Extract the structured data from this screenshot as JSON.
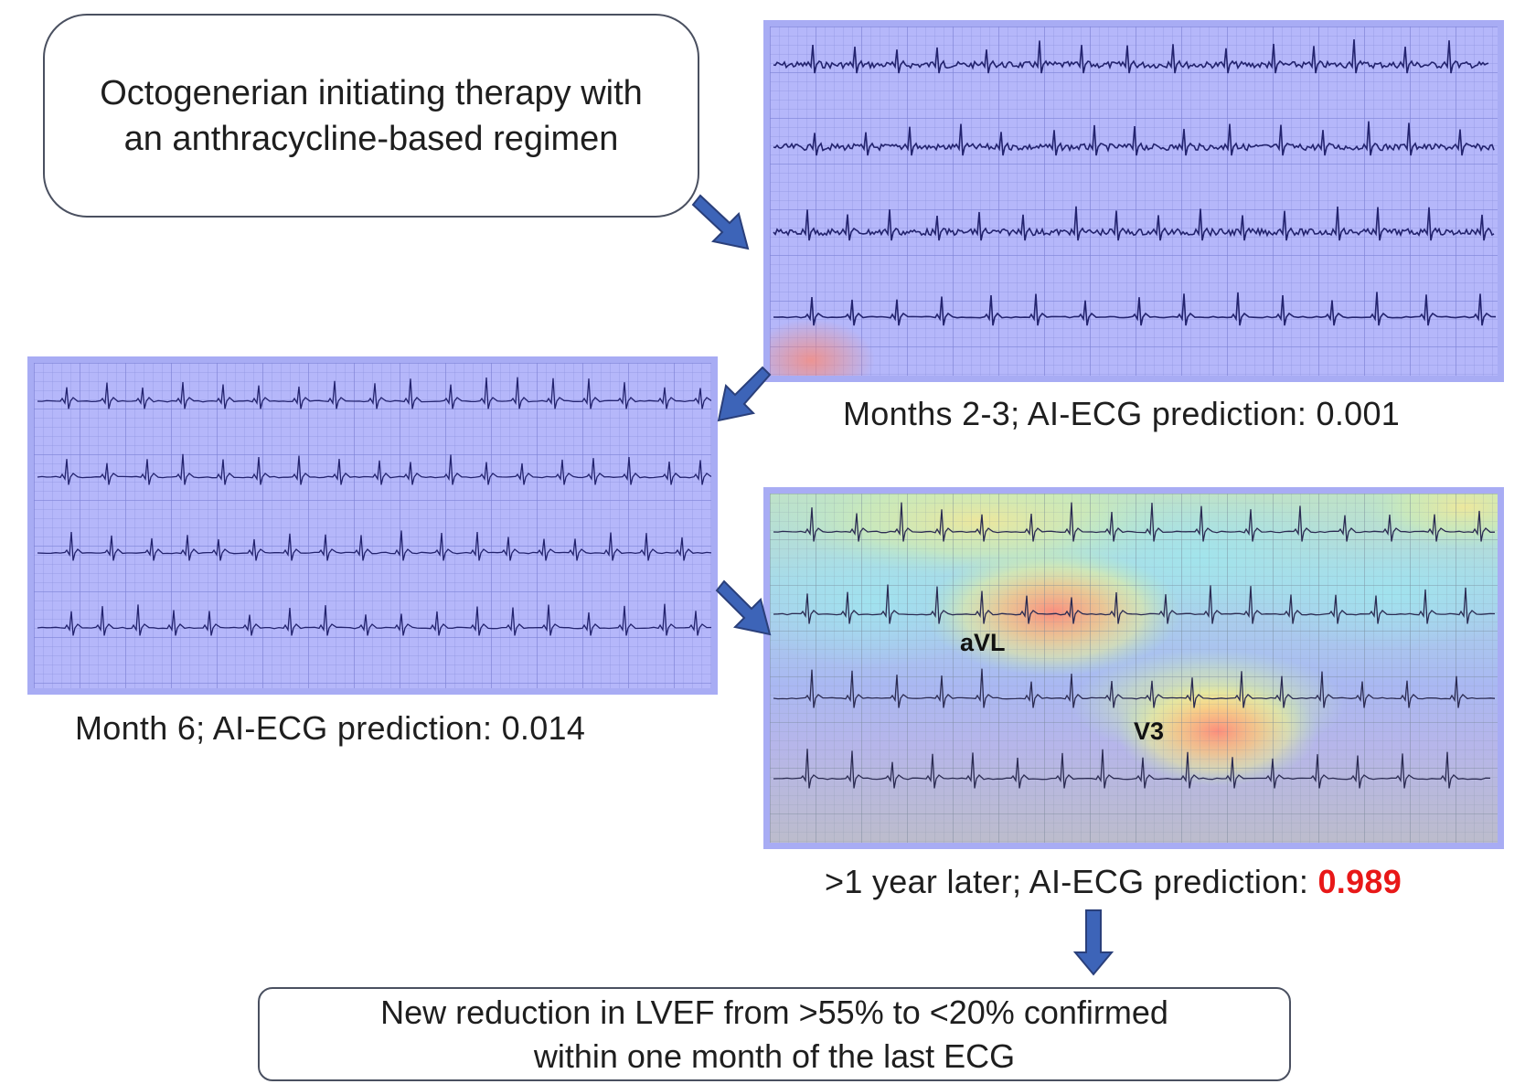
{
  "start": {
    "line1": "Octogenerian initiating therapy with",
    "line2": "an anthracycline-based regimen"
  },
  "ecg1": {
    "caption": "Months 2-3; AI-ECG prediction: 0.001"
  },
  "ecg2": {
    "caption": "Month 6; AI-ECG prediction: 0.014"
  },
  "ecg3": {
    "caption_prefix": ">1 year later; AI-ECG prediction: ",
    "prediction": "0.989",
    "label_avl": "aVL",
    "label_v3": "V3"
  },
  "end": {
    "line1": "New reduction in LVEF from >55% to <20% confirmed",
    "line2": "within one month of the last ECG"
  },
  "colors": {
    "arrow": "#3d64b8",
    "ecg_bg": "#b5b7fa",
    "highlight": "#e81818"
  }
}
